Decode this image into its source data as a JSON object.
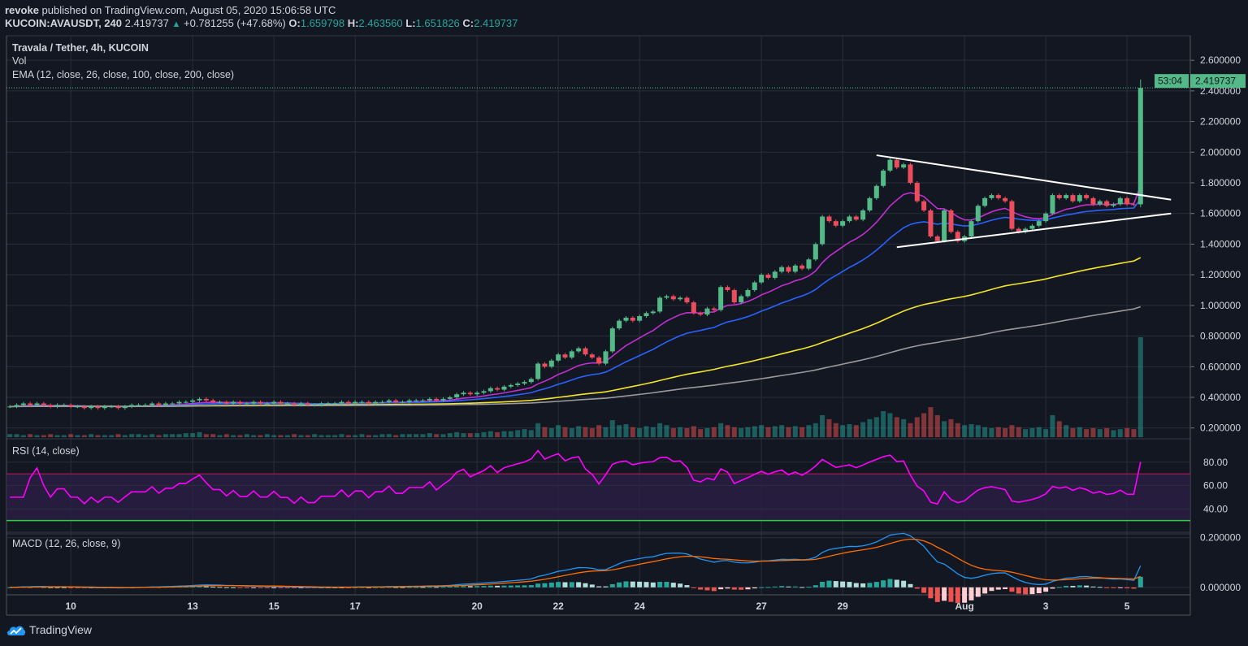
{
  "header": {
    "author": "revoke",
    "published_text": "published on TradingView.com, August 05, 2020 15:06:58 UTC",
    "symbol": "KUCOIN:AVAUSDT, 240",
    "last": "2.419737",
    "change": "+0.781255 (+47.68%)",
    "o_label": "O:",
    "o": "1.659798",
    "h_label": "H:",
    "h": "2.463560",
    "l_label": "L:",
    "l": "1.651826",
    "c_label": "C:",
    "c": "2.419737"
  },
  "legends": {
    "main": "Travala / Tether, 4h, KUCOIN",
    "vol": "Vol",
    "ema": "EMA (12, close, 26, close, 100, close, 200, close)",
    "rsi": "RSI (14, close)",
    "macd": "MACD (12, 26, close, 9)"
  },
  "footer": {
    "brand": "TradingView",
    "icon": "tradingview-cloud-logo-icon"
  },
  "colors": {
    "background": "#131722",
    "grid": "#2a2e39",
    "up": "#53b987",
    "down": "#eb4d5c",
    "ema12": "#c12fd1",
    "ema26": "#2962ff",
    "ema100": "#f5e52a",
    "ema200": "#9a9a9a",
    "rsi": "#ff00ff",
    "rsi_band": "#2a1e46",
    "rsi_upper": "#c2185b",
    "rsi_lower": "#2ecc40",
    "macd": "#2196f3",
    "signal": "#ff6d00",
    "trendline": "#ffffff",
    "price_tag": "#53b987"
  },
  "chart_data": {
    "type": "candlestick",
    "timeframe": "4h",
    "closes": [
      0.34,
      0.35,
      0.36,
      0.35,
      0.36,
      0.35,
      0.34,
      0.35,
      0.35,
      0.34,
      0.34,
      0.33,
      0.34,
      0.33,
      0.34,
      0.34,
      0.33,
      0.34,
      0.35,
      0.35,
      0.35,
      0.36,
      0.35,
      0.36,
      0.36,
      0.37,
      0.37,
      0.38,
      0.39,
      0.38,
      0.37,
      0.37,
      0.36,
      0.37,
      0.36,
      0.36,
      0.37,
      0.36,
      0.36,
      0.37,
      0.36,
      0.36,
      0.35,
      0.36,
      0.35,
      0.35,
      0.36,
      0.36,
      0.36,
      0.37,
      0.36,
      0.37,
      0.37,
      0.36,
      0.37,
      0.37,
      0.38,
      0.37,
      0.37,
      0.38,
      0.38,
      0.38,
      0.39,
      0.38,
      0.39,
      0.4,
      0.42,
      0.43,
      0.42,
      0.43,
      0.44,
      0.46,
      0.45,
      0.47,
      0.48,
      0.49,
      0.5,
      0.52,
      0.62,
      0.6,
      0.64,
      0.68,
      0.66,
      0.7,
      0.72,
      0.68,
      0.66,
      0.62,
      0.7,
      0.85,
      0.9,
      0.92,
      0.9,
      0.93,
      0.95,
      0.96,
      1.05,
      1.06,
      1.04,
      1.05,
      1.02,
      0.95,
      0.94,
      0.98,
      0.97,
      1.12,
      1.1,
      1.02,
      1.06,
      1.1,
      1.15,
      1.2,
      1.18,
      1.22,
      1.25,
      1.22,
      1.26,
      1.24,
      1.3,
      1.4,
      1.58,
      1.55,
      1.52,
      1.55,
      1.58,
      1.56,
      1.62,
      1.7,
      1.78,
      1.88,
      1.95,
      1.9,
      1.92,
      1.8,
      1.68,
      1.62,
      1.45,
      1.42,
      1.62,
      1.48,
      1.42,
      1.45,
      1.55,
      1.65,
      1.7,
      1.72,
      1.7,
      1.68,
      1.5,
      1.48,
      1.5,
      1.52,
      1.55,
      1.6,
      1.72,
      1.7,
      1.72,
      1.68,
      1.72,
      1.7,
      1.66,
      1.68,
      1.65,
      1.66,
      1.7,
      1.66,
      1.659798,
      2.419737
    ],
    "last_candle": {
      "open": 1.659798,
      "high": 2.46356,
      "low": 1.651826,
      "close": 2.419737
    },
    "volume": [
      3,
      3,
      2,
      3,
      2,
      2,
      3,
      2,
      2,
      3,
      2,
      2,
      3,
      2,
      2,
      2,
      3,
      2,
      3,
      3,
      2,
      3,
      2,
      3,
      3,
      3,
      4,
      4,
      5,
      3,
      3,
      2,
      3,
      2,
      2,
      3,
      2,
      2,
      3,
      2,
      2,
      2,
      3,
      2,
      2,
      3,
      2,
      2,
      2,
      3,
      2,
      2,
      3,
      2,
      2,
      3,
      3,
      2,
      3,
      3,
      3,
      3,
      4,
      3,
      3,
      4,
      5,
      4,
      4,
      4,
      5,
      6,
      5,
      6,
      6,
      7,
      8,
      7,
      14,
      10,
      9,
      12,
      10,
      9,
      11,
      10,
      9,
      12,
      10,
      17,
      12,
      13,
      10,
      9,
      11,
      10,
      14,
      12,
      9,
      10,
      9,
      11,
      8,
      9,
      10,
      14,
      12,
      10,
      9,
      10,
      11,
      12,
      10,
      11,
      12,
      10,
      11,
      10,
      12,
      14,
      22,
      18,
      14,
      12,
      13,
      12,
      15,
      18,
      20,
      26,
      24,
      20,
      18,
      14,
      20,
      24,
      30,
      22,
      16,
      18,
      14,
      12,
      13,
      12,
      10,
      9,
      10,
      9,
      12,
      10,
      8,
      9,
      10,
      8,
      22,
      16,
      12,
      9,
      10,
      8,
      9,
      8,
      9,
      7,
      8,
      9,
      8,
      100
    ],
    "indicators": {
      "ema_periods": [
        12,
        26,
        100,
        200
      ],
      "rsi": {
        "period": 14,
        "upper": 70,
        "lower": 30
      },
      "macd": {
        "fast": 12,
        "slow": 26,
        "signal": 9
      }
    },
    "drawings": [
      {
        "type": "trendline",
        "from": {
          "bar": 128,
          "price": 1.98
        },
        "to": {
          "bar": 171.5,
          "price": 1.69
        }
      },
      {
        "type": "trendline",
        "from": {
          "bar": 131,
          "price": 1.38
        },
        "to": {
          "bar": 171.5,
          "price": 1.6
        }
      }
    ],
    "price_axis": {
      "range": [
        0.14,
        2.76
      ],
      "ticks": [
        "2.600000",
        "2.400000",
        "2.200000",
        "2.000000",
        "1.800000",
        "1.600000",
        "1.400000",
        "1.200000",
        "1.000000",
        "0.800000",
        "0.600000",
        "0.400000",
        "0.200000"
      ]
    },
    "rsi_axis": {
      "range": [
        20,
        100
      ],
      "ticks": [
        "80.00",
        "60.00",
        "40.00"
      ]
    },
    "macd_axis": {
      "range": [
        -0.03,
        0.215
      ],
      "ticks": [
        "0.200000",
        "0.000000"
      ]
    },
    "price_tag": "2.419737",
    "countdown": "53:04",
    "x_ticks": [
      {
        "label": "10",
        "day": "2020-07-10"
      },
      {
        "label": "13",
        "day": "2020-07-13"
      },
      {
        "label": "15",
        "day": "2020-07-15"
      },
      {
        "label": "17",
        "day": "2020-07-17"
      },
      {
        "label": "20",
        "day": "2020-07-20"
      },
      {
        "label": "22",
        "day": "2020-07-22"
      },
      {
        "label": "24",
        "day": "2020-07-24"
      },
      {
        "label": "27",
        "day": "2020-07-27"
      },
      {
        "label": "29",
        "day": "2020-07-29"
      },
      {
        "label": "Aug",
        "day": "2020-08-01"
      },
      {
        "label": "3",
        "day": "2020-08-03"
      },
      {
        "label": "5",
        "day": "2020-08-05"
      }
    ]
  }
}
